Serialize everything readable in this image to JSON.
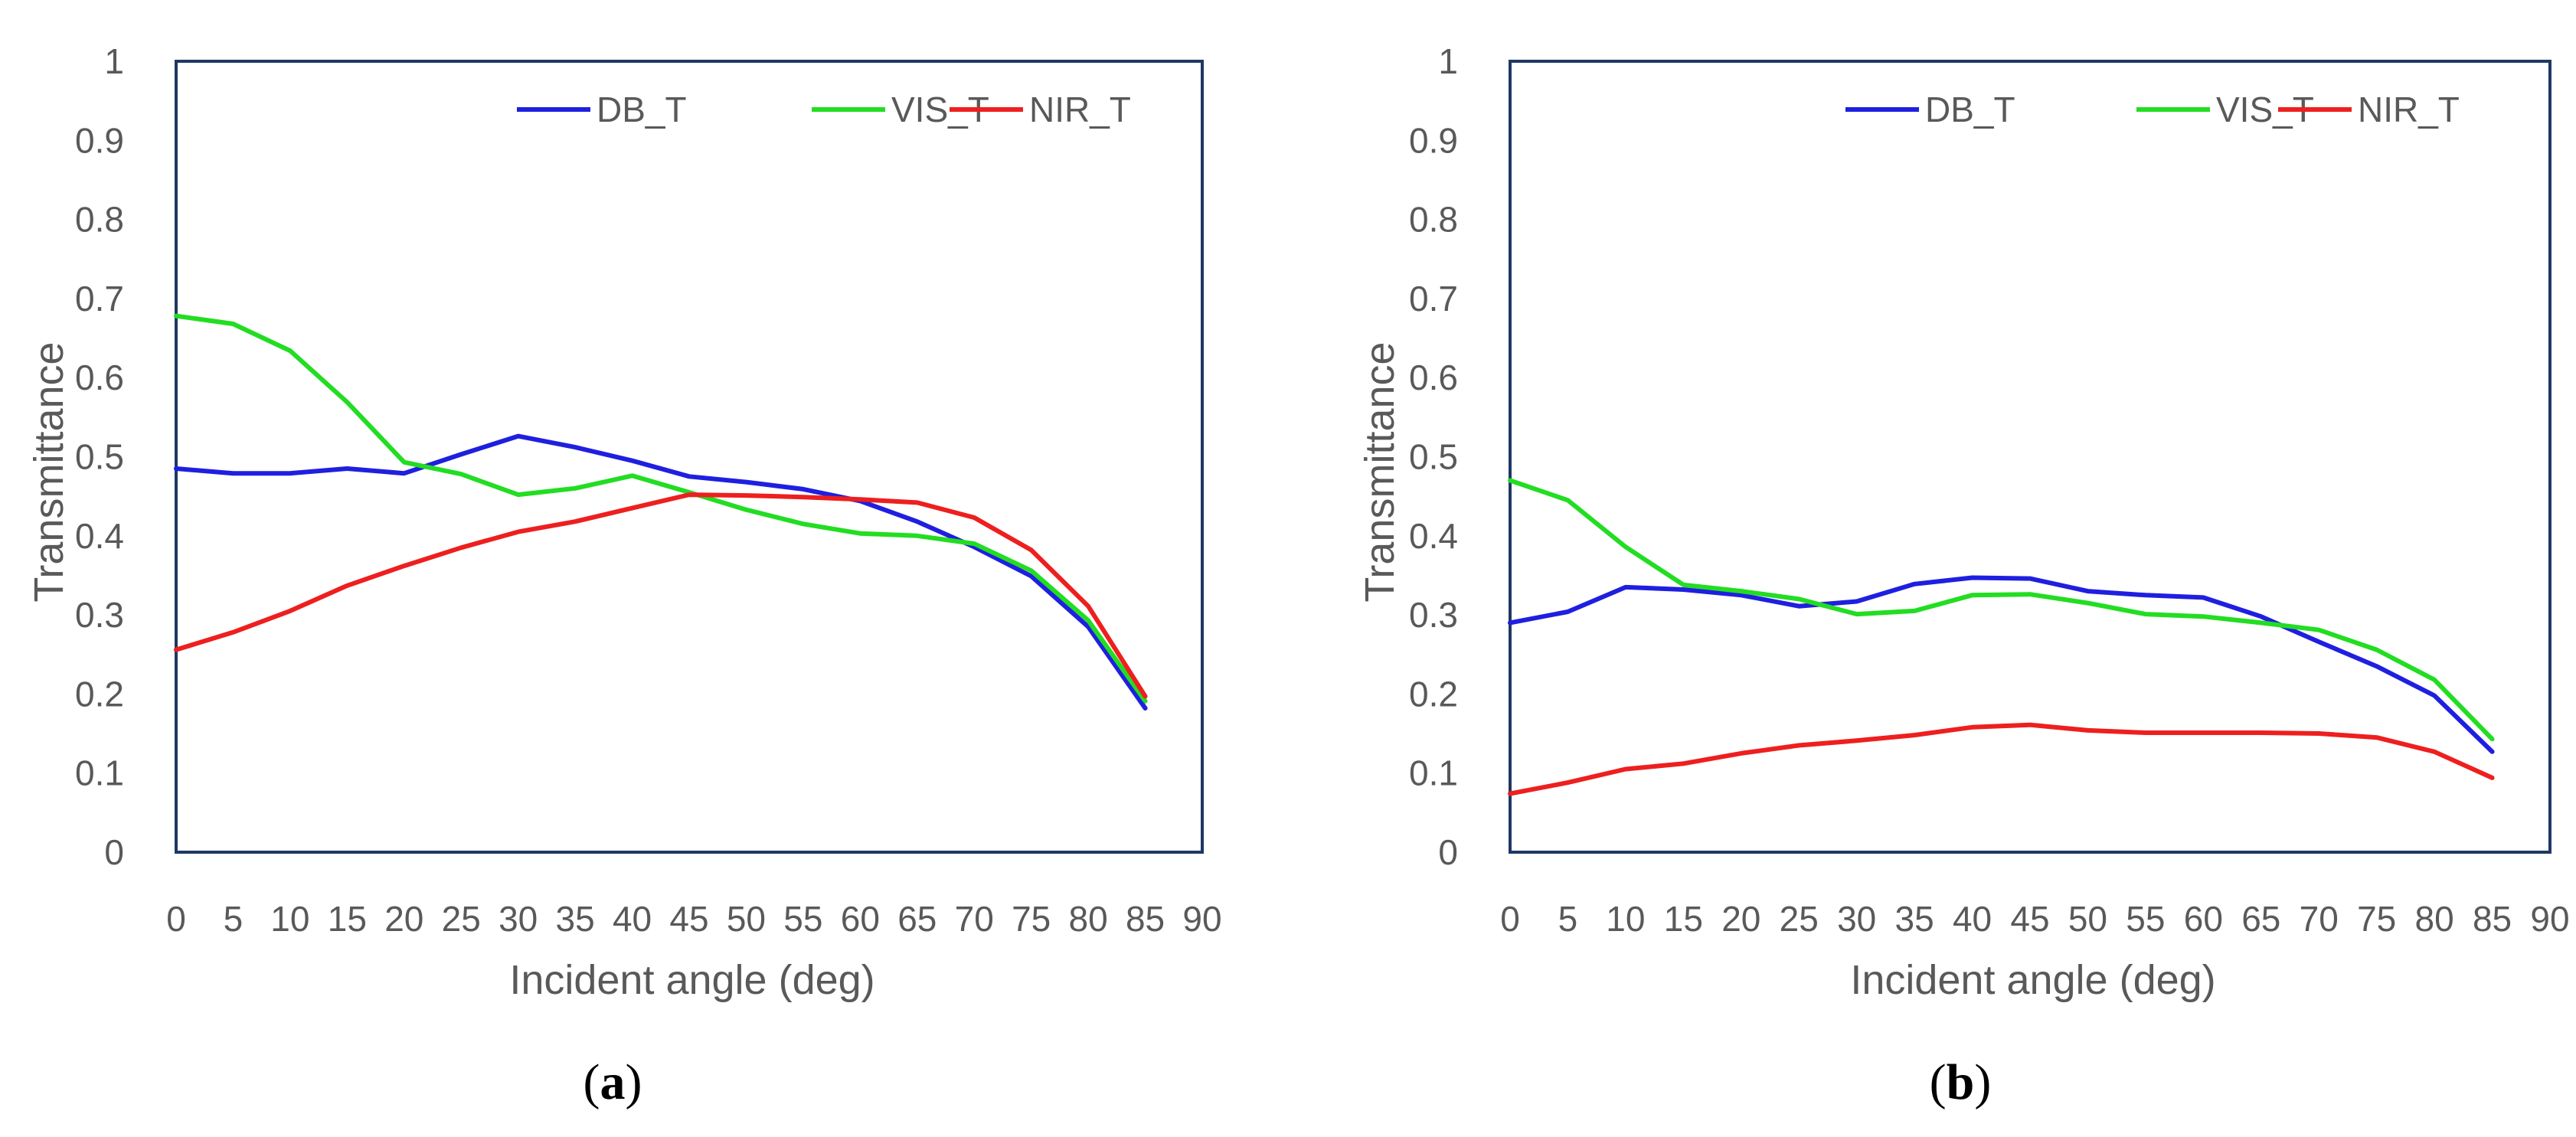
{
  "figure": {
    "panel_labels": [
      "a",
      "b"
    ]
  },
  "chart_data": [
    {
      "type": "line",
      "panel": "a",
      "title": "",
      "xlabel": "Incident angle (deg)",
      "ylabel": "Transmittance",
      "xlim": [
        0,
        90
      ],
      "ylim": [
        0,
        1
      ],
      "xticks": [
        0,
        5,
        10,
        15,
        20,
        25,
        30,
        35,
        40,
        45,
        50,
        55,
        60,
        65,
        70,
        75,
        80,
        85,
        90
      ],
      "yticks": [
        "0",
        "0.1",
        "0.2",
        "0.3",
        "0.4",
        "0.5",
        "0.6",
        "0.7",
        "0.8",
        "0.9",
        "1"
      ],
      "grid": false,
      "legend_position": "top-right",
      "x": [
        0,
        5,
        10,
        15,
        20,
        25,
        30,
        35,
        40,
        45,
        50,
        55,
        60,
        65,
        70,
        75,
        80,
        85
      ],
      "series": [
        {
          "name": "DB_T",
          "color": "#1f1fe0",
          "values": [
            0.485,
            0.479,
            0.479,
            0.485,
            0.479,
            0.503,
            0.526,
            0.512,
            0.495,
            0.475,
            0.468,
            0.459,
            0.444,
            0.418,
            0.386,
            0.349,
            0.285,
            0.182
          ]
        },
        {
          "name": "VIS_T",
          "color": "#22dd22",
          "values": [
            0.678,
            0.668,
            0.634,
            0.569,
            0.493,
            0.478,
            0.452,
            0.46,
            0.476,
            0.455,
            0.433,
            0.415,
            0.403,
            0.4,
            0.39,
            0.356,
            0.293,
            0.191
          ]
        },
        {
          "name": "NIR_T",
          "color": "#ee1f1f",
          "values": [
            0.256,
            0.278,
            0.305,
            0.337,
            0.362,
            0.385,
            0.405,
            0.418,
            0.435,
            0.452,
            0.451,
            0.449,
            0.446,
            0.442,
            0.423,
            0.382,
            0.311,
            0.197
          ]
        }
      ]
    },
    {
      "type": "line",
      "panel": "b",
      "title": "",
      "xlabel": "Incident angle (deg)",
      "ylabel": "Transmittance",
      "xlim": [
        0,
        90
      ],
      "ylim": [
        0,
        1
      ],
      "xticks": [
        0,
        5,
        10,
        15,
        20,
        25,
        30,
        35,
        40,
        45,
        50,
        55,
        60,
        65,
        70,
        75,
        80,
        85,
        90
      ],
      "yticks": [
        "0",
        "0.1",
        "0.2",
        "0.3",
        "0.4",
        "0.5",
        "0.6",
        "0.7",
        "0.8",
        "0.9",
        "1"
      ],
      "grid": false,
      "legend_position": "top-right",
      "x": [
        0,
        5,
        10,
        15,
        20,
        25,
        30,
        35,
        40,
        45,
        50,
        55,
        60,
        65,
        70,
        75,
        80,
        85
      ],
      "series": [
        {
          "name": "DB_T",
          "color": "#1f1fe0",
          "values": [
            0.29,
            0.304,
            0.335,
            0.332,
            0.325,
            0.311,
            0.317,
            0.339,
            0.347,
            0.346,
            0.33,
            0.325,
            0.322,
            0.298,
            0.266,
            0.235,
            0.198,
            0.127
          ]
        },
        {
          "name": "VIS_T",
          "color": "#22dd22",
          "values": [
            0.47,
            0.445,
            0.386,
            0.338,
            0.33,
            0.32,
            0.301,
            0.305,
            0.325,
            0.326,
            0.315,
            0.301,
            0.298,
            0.29,
            0.281,
            0.256,
            0.218,
            0.143
          ]
        },
        {
          "name": "NIR_T",
          "color": "#ee1f1f",
          "values": [
            0.074,
            0.088,
            0.105,
            0.112,
            0.125,
            0.135,
            0.141,
            0.148,
            0.158,
            0.161,
            0.154,
            0.151,
            0.151,
            0.151,
            0.15,
            0.145,
            0.127,
            0.094
          ]
        }
      ]
    }
  ]
}
